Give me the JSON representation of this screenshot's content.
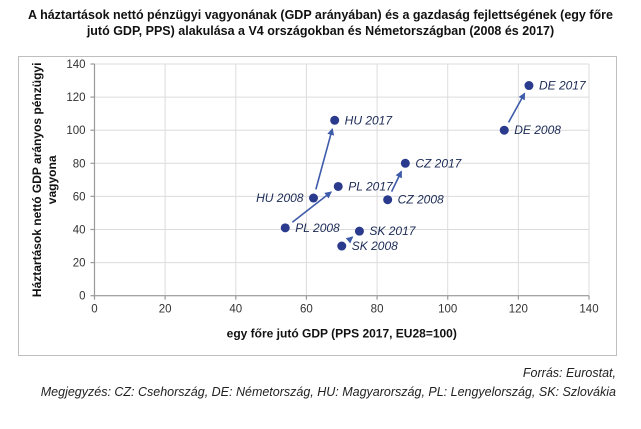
{
  "page": {
    "title": "A háztartások nettó pénzügyi vagyonának (GDP arányában) és a gazdaság fejlettségének (egy főre jutó GDP, PPS) alakulása a V4 országokban és Németországban (2008 és 2017)",
    "source_line": "Forrás: Eurostat,",
    "note_line": "Megjegyzés: CZ: Csehország, DE: Németország, HU: Magyarország, PL: Lengyelország, SK: Szlovákia"
  },
  "chart_data": {
    "type": "scatter",
    "title": "A háztartások nettó pénzügyi vagyonának (GDP arányában) és a gazdaság fejlettségének (egy főre jutó GDP, PPS) alakulása a V4 országokban és Németországban (2008 és 2017)",
    "xlabel": "egy főre jutó GDP (PPS 2017, EU28=100)",
    "ylabel": "Háztartások nettó GDP arányos pénzügyi vagyona",
    "ylabel_line1": "Háztartások nettó GDP arányos pénzügyi",
    "ylabel_line2": "vagyona",
    "xlim": [
      0,
      140
    ],
    "ylim": [
      0,
      140
    ],
    "xticks": [
      0,
      20,
      40,
      60,
      80,
      100,
      120,
      140
    ],
    "yticks": [
      0,
      20,
      40,
      60,
      80,
      100,
      120,
      140
    ],
    "grid": true,
    "legend": "none",
    "points": [
      {
        "label": "HU 2008",
        "x": 62,
        "y": 59,
        "label_side": "left"
      },
      {
        "label": "HU 2017",
        "x": 68,
        "y": 106,
        "label_side": "right"
      },
      {
        "label": "PL 2008",
        "x": 54,
        "y": 41,
        "label_side": "right"
      },
      {
        "label": "PL 2017",
        "x": 69,
        "y": 66,
        "label_side": "right"
      },
      {
        "label": "CZ 2008",
        "x": 83,
        "y": 58,
        "label_side": "right"
      },
      {
        "label": "CZ 2017",
        "x": 88,
        "y": 80,
        "label_side": "right"
      },
      {
        "label": "SK 2008",
        "x": 70,
        "y": 30,
        "label_side": "right"
      },
      {
        "label": "SK 2017",
        "x": 75,
        "y": 39,
        "label_side": "right"
      },
      {
        "label": "DE 2008",
        "x": 116,
        "y": 100,
        "label_side": "right"
      },
      {
        "label": "DE 2017",
        "x": 123,
        "y": 127,
        "label_side": "right"
      }
    ],
    "arrows": [
      {
        "from": "HU 2008",
        "to": "HU 2017"
      },
      {
        "from": "PL 2008",
        "to": "PL 2017"
      },
      {
        "from": "CZ 2008",
        "to": "CZ 2017"
      },
      {
        "from": "SK 2008",
        "to": "SK 2017"
      },
      {
        "from": "DE 2008",
        "to": "DE 2017"
      }
    ],
    "colors": {
      "point": "#2a3a8c",
      "arrow": "#3f5caa",
      "point_label": "#1b2a55",
      "grid": "#dcdcdc",
      "axis": "#9a9a9a",
      "tick_label": "#333333",
      "axis_title": "#111111",
      "frame": "#bfbfbf"
    }
  }
}
